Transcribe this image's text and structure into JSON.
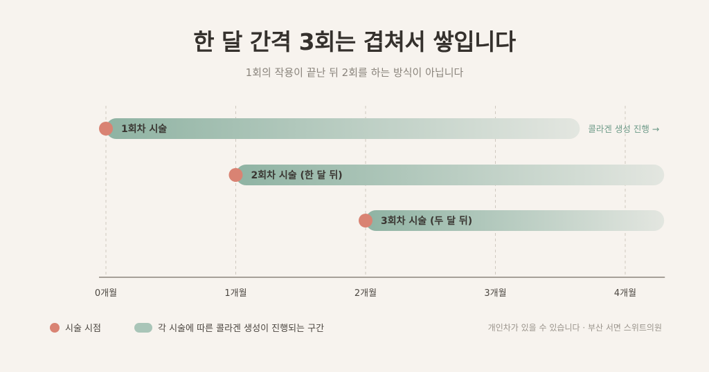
{
  "title": "한 달 간격 3회는 겹쳐서 쌓입니다",
  "subtitle": "1회의 작용이 끝난 뒤 2회를 하는 방식이 아닙니다",
  "chart_data": {
    "type": "bar",
    "x_unit": "개월",
    "xlim": [
      0,
      4.3
    ],
    "x_ticks": [
      0,
      1,
      2,
      3,
      4
    ],
    "tick_labels": [
      "0개월",
      "1개월",
      "2개월",
      "3개월",
      "4개월"
    ],
    "grid": true,
    "bars": [
      {
        "label": "1회차 시술",
        "start": 0,
        "end": 3.65,
        "annotation": "콜라겐 생성 진행 →"
      },
      {
        "label": "2회차 시술 (한 달 뒤)",
        "start": 1,
        "end": 4.3,
        "annotation": ""
      },
      {
        "label": "3회차 시술 (두 달 뒤)",
        "start": 2,
        "end": 4.3,
        "annotation": ""
      }
    ]
  },
  "legend": {
    "point_label": "시술 시점",
    "range_label": "각 시술에 따른 콜라겐 생성이 진행되는 구간"
  },
  "footnote": "개인차가 있을 수 있습니다 · 부산 서면 스위트의원",
  "colors": {
    "point": "#d98373",
    "bar_start": "#8fb3a3",
    "bar_end": "#e3e6e0",
    "axis": "#8c857c",
    "grid": "#cfc8bf",
    "annotation": "#6d9a88"
  }
}
